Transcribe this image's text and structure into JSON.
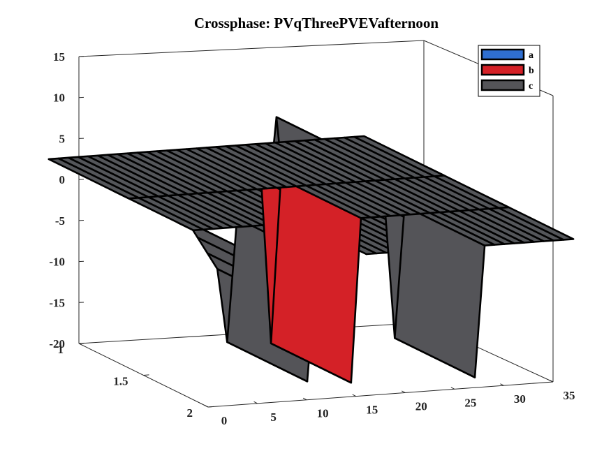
{
  "chart_data": {
    "type": "3d-ribbon",
    "title": "Crossphase: PVqThreePVEVafternoon",
    "xlabel": "",
    "ylabel": "",
    "zlabel": "",
    "x_ticks": [
      "0",
      "5",
      "10",
      "15",
      "20",
      "25",
      "30",
      "35"
    ],
    "y_ticks": [
      "1",
      "1.5",
      "2"
    ],
    "z_ticks": [
      "15",
      "10",
      "5",
      "0",
      "-5",
      "-10",
      "-15",
      "-20"
    ],
    "xlim": [
      0,
      35
    ],
    "ylim": [
      1,
      2
    ],
    "zlim": [
      -20,
      15
    ],
    "legend_position": "top-right",
    "series": [
      {
        "name": "a",
        "color": "#2f6fd1",
        "values": [
          0,
          0,
          0,
          0,
          0,
          0,
          0,
          0,
          0,
          0,
          0,
          0,
          0,
          0,
          0,
          0,
          0,
          0,
          0,
          0,
          0,
          0,
          0,
          0,
          0,
          0,
          0,
          0,
          0,
          0,
          0,
          0,
          0
        ]
      },
      {
        "name": "b",
        "color": "#d42127",
        "values": [
          0,
          0,
          0,
          0,
          0,
          0,
          0,
          0,
          0,
          0,
          0,
          0,
          0,
          0,
          0,
          0,
          -20,
          0,
          0,
          0,
          0,
          0,
          0,
          0,
          0,
          0,
          0,
          0,
          0,
          0,
          0,
          0,
          0
        ]
      },
      {
        "name": "c",
        "color": "#545458",
        "values": [
          0,
          0,
          -2,
          -4,
          -6,
          -15,
          0,
          0,
          0,
          0,
          12,
          0,
          0,
          0,
          0,
          0,
          0,
          0,
          0,
          0,
          0,
          0,
          -16,
          0,
          0,
          0,
          0,
          0,
          0,
          0,
          0,
          0,
          0
        ]
      }
    ]
  }
}
